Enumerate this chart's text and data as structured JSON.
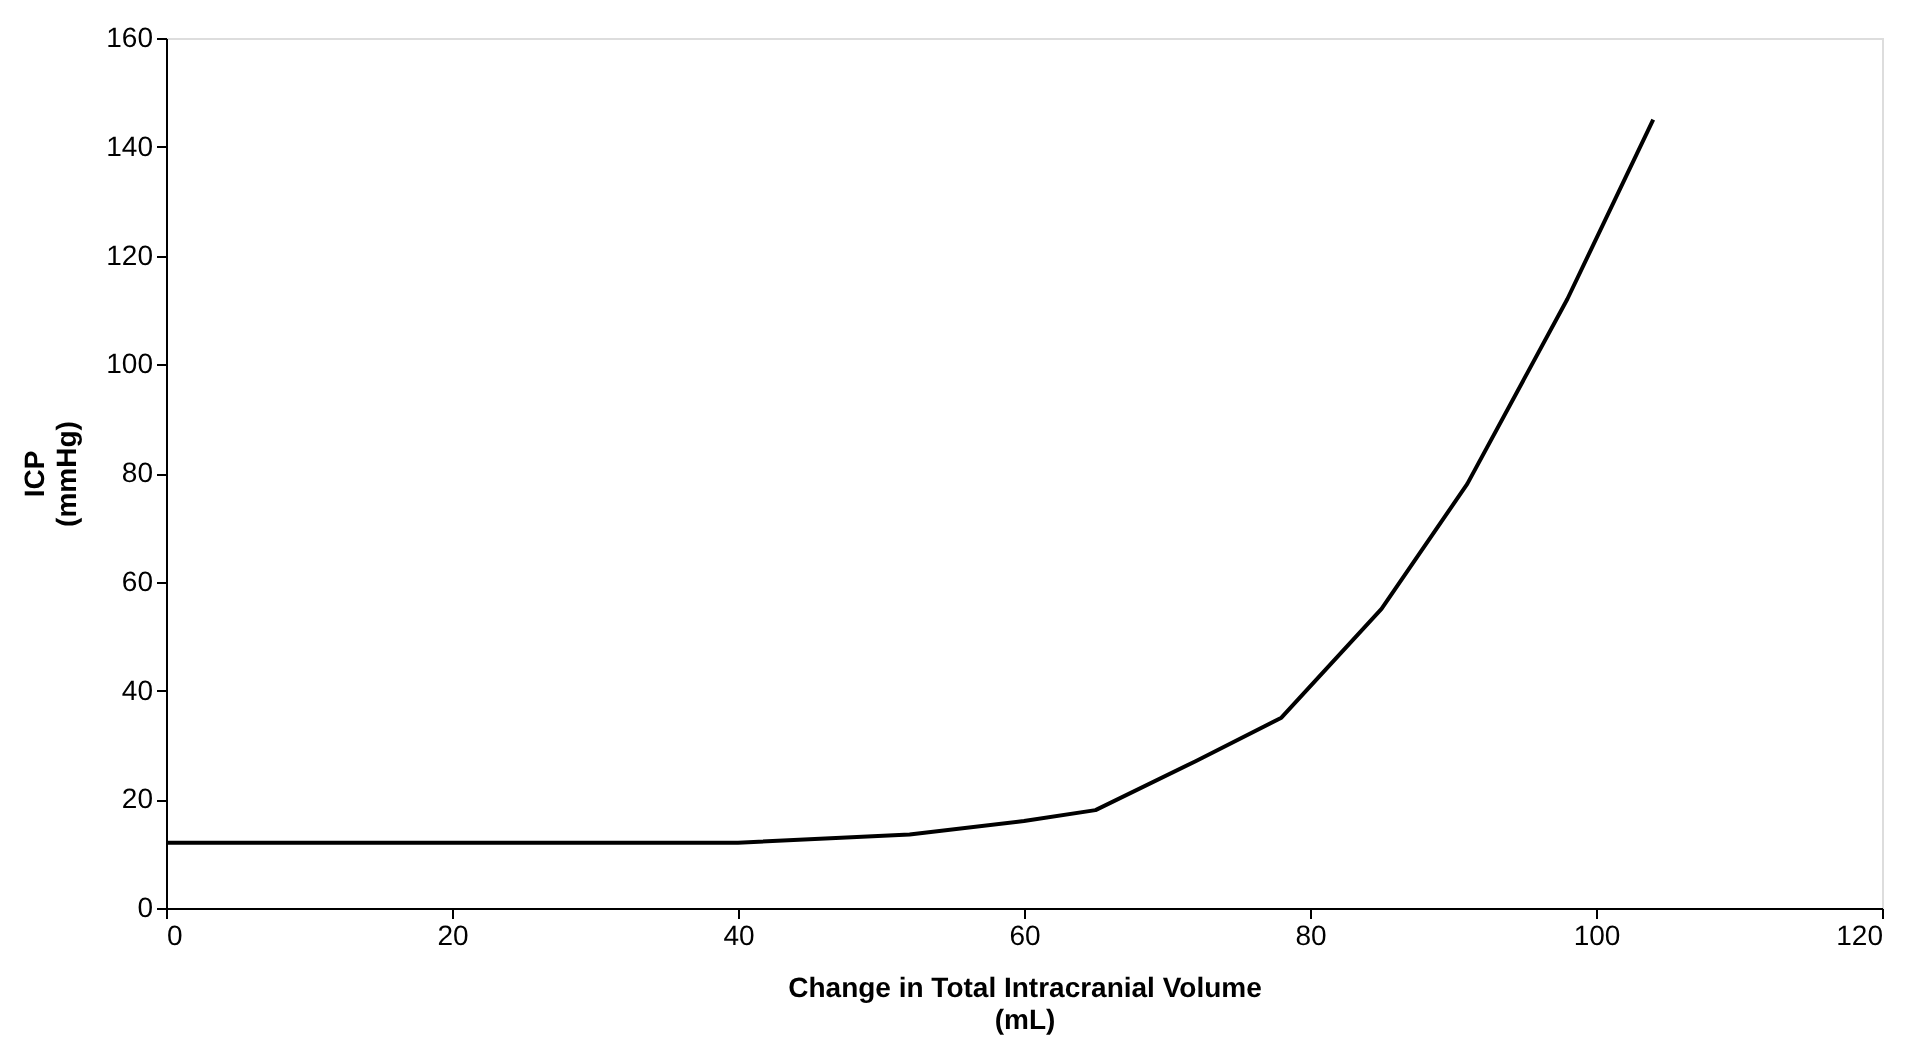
{
  "chart_data": {
    "type": "line",
    "xlabel": "Change in Total Intracranial Volume\n(mL)",
    "ylabel": "ICP\n(mmHg)",
    "x": [
      0,
      40,
      52,
      60,
      65,
      72,
      78,
      85,
      91,
      98,
      104
    ],
    "series": [
      {
        "color": "#000000",
        "values": [
          12,
          12,
          13.5,
          16,
          18,
          27,
          35,
          55,
          78,
          112,
          145
        ]
      }
    ],
    "xlim": [
      0,
      120
    ],
    "xticks": [
      0,
      20,
      40,
      60,
      80,
      100,
      120
    ],
    "ylim": [
      0,
      160
    ],
    "yticks": [
      0,
      20,
      40,
      60,
      80,
      100,
      120,
      140,
      160
    ],
    "grid": false,
    "marker": "none",
    "line_style": "solid"
  }
}
